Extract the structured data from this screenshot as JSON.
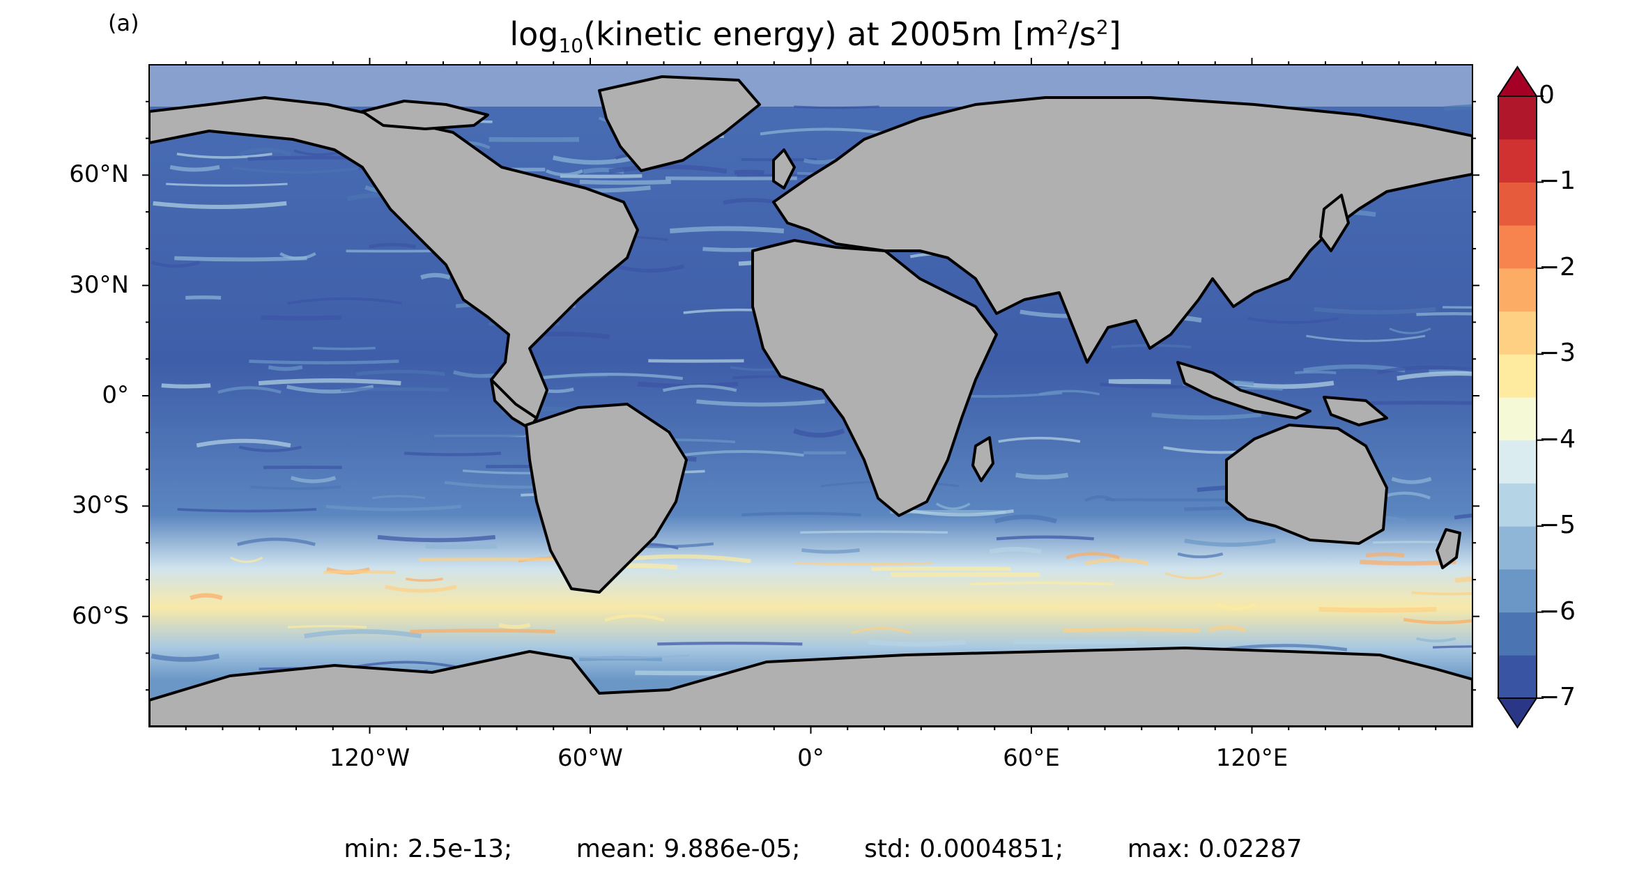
{
  "panel_label": "(a)",
  "title": {
    "prefix": "log",
    "prefix_sub": "10",
    "main": "(kinetic energy) at 2005m [m",
    "sup1": "2",
    "mid": "/s",
    "sup2": "2",
    "suffix": "]"
  },
  "lat_labels": [
    {
      "text": "60°N",
      "value": 60
    },
    {
      "text": "30°N",
      "value": 30
    },
    {
      "text": "0°",
      "value": 0
    },
    {
      "text": "30°S",
      "value": -30
    },
    {
      "text": "60°S",
      "value": -60
    }
  ],
  "lon_labels": [
    {
      "text": "120°W",
      "value": -120
    },
    {
      "text": "60°W",
      "value": -60
    },
    {
      "text": "0°",
      "value": 0
    },
    {
      "text": "60°E",
      "value": 60
    },
    {
      "text": "120°E",
      "value": 120
    }
  ],
  "colorbar": {
    "ticks": [
      {
        "text": "0",
        "value": 0
      },
      {
        "text": "−1",
        "value": -1
      },
      {
        "text": "−2",
        "value": -2
      },
      {
        "text": "−3",
        "value": -3
      },
      {
        "text": "−4",
        "value": -4
      },
      {
        "text": "−5",
        "value": -5
      },
      {
        "text": "−6",
        "value": -6
      },
      {
        "text": "−7",
        "value": -7
      }
    ],
    "range": [
      -7,
      0
    ],
    "colors": [
      "#3a54a4",
      "#4b74b2",
      "#6a97c6",
      "#8fb6d7",
      "#b5d4e6",
      "#dbecf1",
      "#f5f9d6",
      "#feeb9f",
      "#fdd084",
      "#fcac64",
      "#f7844e",
      "#e65b3c",
      "#cf3230",
      "#b1172b"
    ],
    "under_color": "#2a3787",
    "over_color": "#a50026",
    "extend": "both"
  },
  "map": {
    "projection": "PlateCarree",
    "lon_range": [
      -180,
      180
    ],
    "lat_range": [
      -90,
      90
    ],
    "land_color": "#b0b0b0",
    "no_data_color": "#ffffff"
  },
  "stats": {
    "min": "min: 2.5e-13;",
    "mean": "mean: 9.886e-05;",
    "std": "std: 0.0004851;",
    "max": "max: 0.02287"
  }
}
